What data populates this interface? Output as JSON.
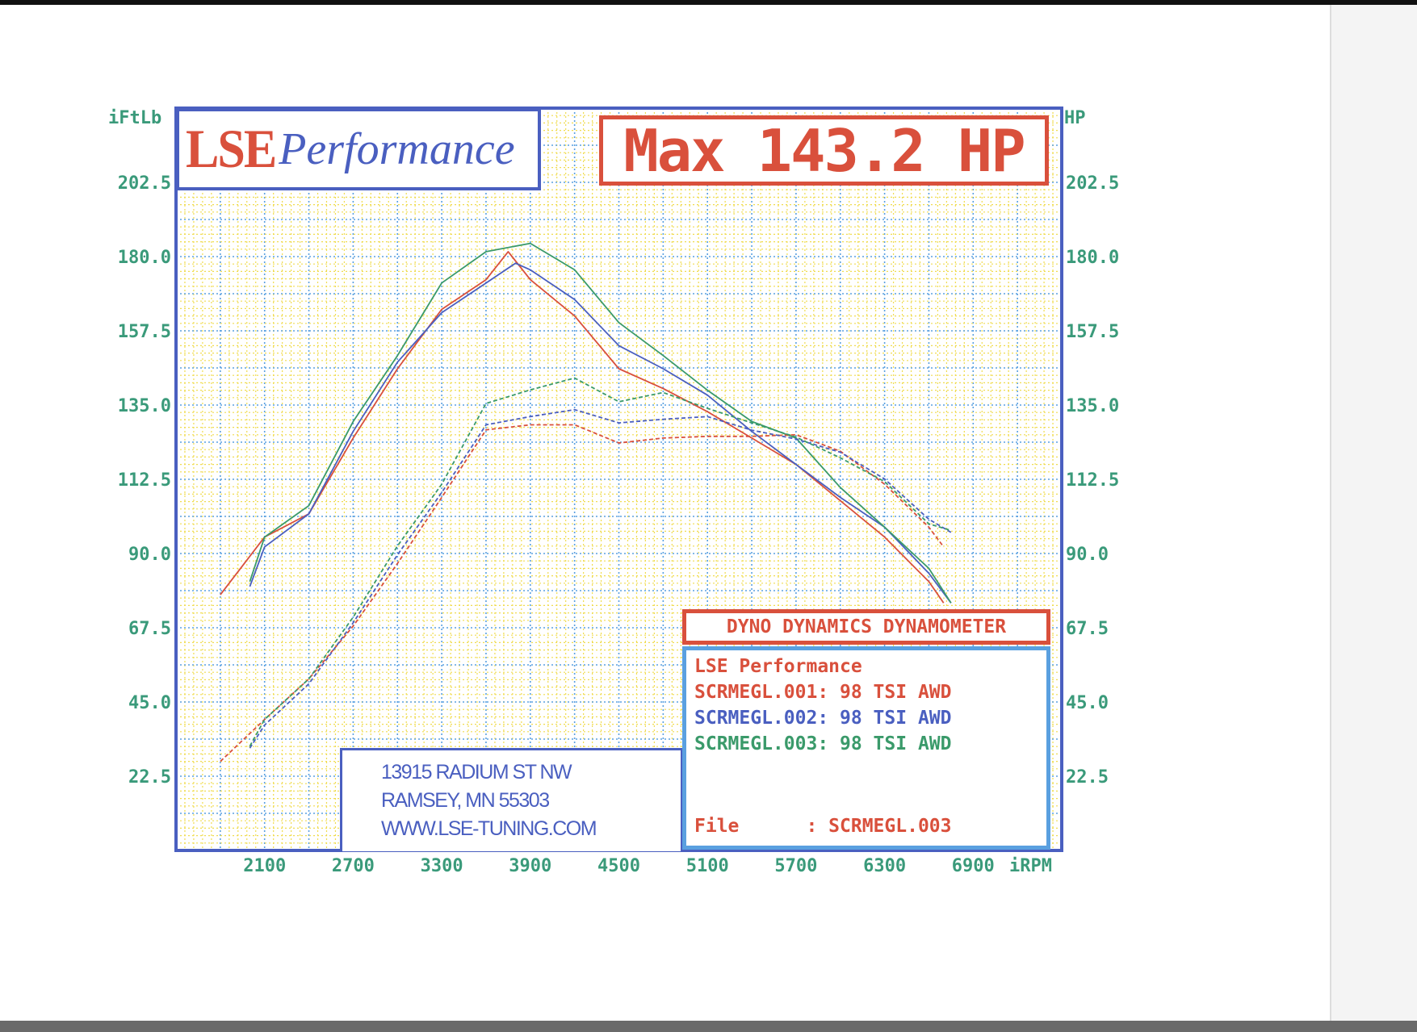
{
  "colors": {
    "run1": "#d9503c",
    "run2": "#4a5fc0",
    "run3": "#3a9a6a",
    "axis_text": "#3a9a7a",
    "frame": "#4a5fc0",
    "grid_major": "#5aa0e0",
    "grid_minor": "#f0dc50"
  },
  "logo": {
    "lse": "LSE",
    "performance": "Performance"
  },
  "max_label": "Max 143.2 HP",
  "address": {
    "line1": "13915 RADIUM ST NW",
    "line2": "RAMSEY, MN 55303",
    "line3": "WWW.LSE-TUNING.COM"
  },
  "dyno_title": "DYNO DYNAMICS DYNAMOMETER",
  "legend": {
    "company": "LSE Performance",
    "entries": [
      "SCRMEGL.001: 98 TSI AWD",
      "SCRMEGL.002: 98 TSI AWD",
      "SCRMEGL.003: 98 TSI AWD"
    ],
    "file": "File      : SCRMEGL.003"
  },
  "chart_data": {
    "type": "line",
    "ylabel_left": "iFtLb",
    "ylabel_right": "HP",
    "xlabel": "iRPM",
    "xlim": [
      1500,
      7500
    ],
    "ylim": [
      0,
      225
    ],
    "x_ticks": [
      "2100",
      "2700",
      "3300",
      "3900",
      "4500",
      "5100",
      "5700",
      "6300",
      "6900"
    ],
    "y_ticks": [
      "22.5",
      "45.0",
      "67.5",
      "90.0",
      "112.5",
      "135.0",
      "157.5",
      "180.0",
      "202.5"
    ],
    "grid": true,
    "series": [
      {
        "name": "SCRMEGL.001",
        "quantity": "torque",
        "style": "solid",
        "color": "#d9503c",
        "x": [
          1800,
          2100,
          2400,
          2700,
          3000,
          3300,
          3600,
          3750,
          3900,
          4200,
          4500,
          4800,
          5100,
          5400,
          5700,
          6000,
          6300,
          6600,
          6700
        ],
        "y": [
          77.5,
          95,
          102,
          125,
          146,
          164,
          173,
          181.5,
          173,
          162,
          146,
          140,
          133,
          125,
          117,
          106,
          95,
          81.5,
          75
        ]
      },
      {
        "name": "SCRMEGL.002",
        "quantity": "torque",
        "style": "solid",
        "color": "#4a5fc0",
        "x": [
          2000,
          2100,
          2400,
          2700,
          3000,
          3300,
          3600,
          3800,
          3900,
          4200,
          4500,
          4800,
          5100,
          5400,
          5700,
          6000,
          6300,
          6600,
          6750
        ],
        "y": [
          80,
          92,
          102,
          127,
          148,
          163,
          172,
          178,
          176,
          167,
          153,
          146,
          138,
          127,
          117,
          107,
          98,
          84,
          75
        ]
      },
      {
        "name": "SCRMEGL.003",
        "quantity": "torque",
        "style": "solid",
        "color": "#3a9a6a",
        "x": [
          2000,
          2100,
          2400,
          2700,
          3000,
          3300,
          3600,
          3900,
          4200,
          4500,
          4800,
          5100,
          5400,
          5700,
          6000,
          6300,
          6600,
          6750
        ],
        "y": [
          81.5,
          95,
          104.5,
          130,
          150,
          172,
          181.5,
          184,
          176,
          160,
          150,
          139.5,
          130,
          125,
          110,
          98,
          85.5,
          75
        ]
      },
      {
        "name": "SCRMEGL.001",
        "quantity": "power",
        "style": "dashed",
        "color": "#d9503c",
        "x": [
          1800,
          2100,
          2400,
          2700,
          3000,
          3300,
          3600,
          3900,
          4200,
          4500,
          4800,
          5100,
          5400,
          5700,
          6000,
          6300,
          6600,
          6700
        ],
        "y": [
          27,
          39.7,
          52,
          68,
          87,
          107,
          127.5,
          129,
          129,
          123.5,
          125,
          125.5,
          125.5,
          126,
          121,
          111,
          98,
          92
        ]
      },
      {
        "name": "SCRMEGL.002",
        "quantity": "power",
        "style": "dashed",
        "color": "#4a5fc0",
        "x": [
          2000,
          2100,
          2400,
          2700,
          3000,
          3300,
          3600,
          3900,
          4200,
          4500,
          4800,
          5100,
          5400,
          5700,
          6000,
          6300,
          6600,
          6750
        ],
        "y": [
          31,
          38,
          50.5,
          69,
          89.6,
          108.5,
          129,
          131.5,
          133.6,
          129.6,
          130.7,
          131.5,
          127.4,
          124.7,
          120.7,
          112.6,
          100.4,
          96.4
        ]
      },
      {
        "name": "SCRMEGL.003",
        "quantity": "power",
        "style": "dashed",
        "color": "#3a9a6a",
        "x": [
          2000,
          2100,
          2400,
          2700,
          3000,
          3300,
          3600,
          3900,
          4200,
          4500,
          4800,
          5100,
          5400,
          5700,
          6000,
          6300,
          6600,
          6750
        ],
        "y": [
          31.6,
          39.7,
          52,
          70.7,
          92.3,
          111,
          135.5,
          139.6,
          143.2,
          136,
          138.8,
          134,
          129.6,
          125.3,
          119,
          111.8,
          99,
          97
        ]
      }
    ]
  }
}
